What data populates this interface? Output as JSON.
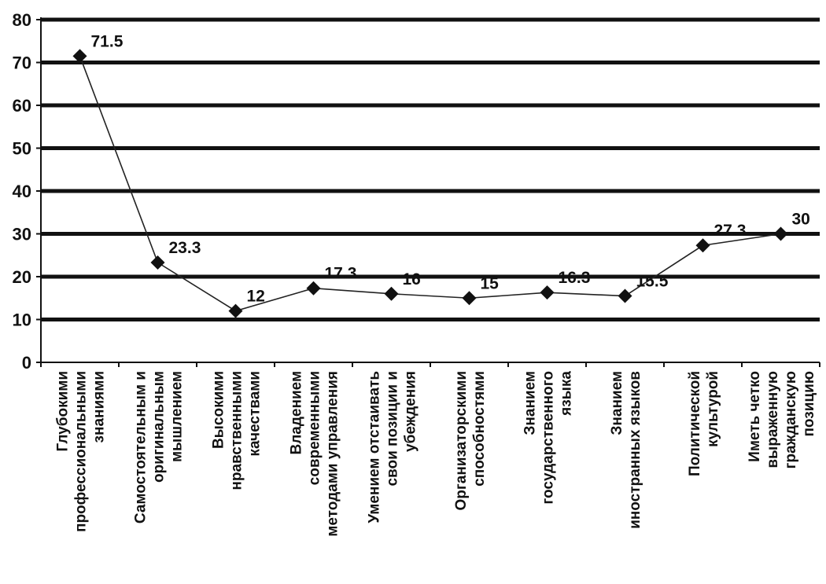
{
  "chart_data": {
    "type": "line",
    "ylim": [
      0,
      80
    ],
    "yticks": [
      0,
      10,
      20,
      30,
      40,
      50,
      60,
      70,
      80
    ],
    "grid": true,
    "categories": [
      [
        "Глубокими",
        "профессиональными",
        "знаниями"
      ],
      [
        "Самостоятельным и",
        "оригинальным",
        "мышлением"
      ],
      [
        "Высокими",
        "нравственными",
        "качествами"
      ],
      [
        "Владением",
        "современными",
        "методами управления"
      ],
      [
        "Умением отстаивать",
        "свои позиции и",
        "убеждения"
      ],
      [
        "Организаторскими",
        "способностями"
      ],
      [
        "Знанием",
        "государственного",
        "языка"
      ],
      [
        "Знанием",
        "иностранных языков"
      ],
      [
        "Политической",
        "культурой"
      ],
      [
        "Иметь четко",
        "выраженную",
        "гражданскую",
        "позицию"
      ]
    ],
    "values": [
      71.5,
      23.3,
      12,
      17.3,
      16,
      15,
      16.3,
      15.5,
      27.3,
      30
    ],
    "data_labels": [
      "71.5",
      "23.3",
      "12",
      "17.3",
      "16",
      "15",
      "16.3",
      "15.5",
      "27.3",
      "30"
    ]
  }
}
